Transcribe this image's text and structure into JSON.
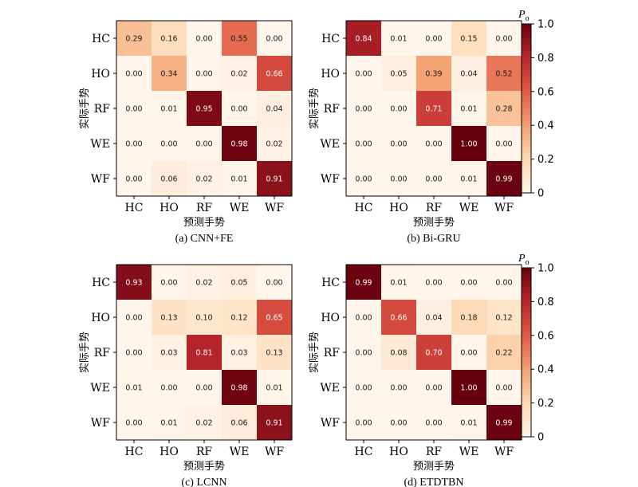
{
  "colorbar": {
    "title": "P",
    "title_subscript": "o",
    "ticks": [
      "0",
      "0.2",
      "0.4",
      "0.6",
      "0.8",
      "1.0"
    ],
    "range": [
      0,
      1
    ],
    "colors": [
      "#fff5eb",
      "#fdd8b2",
      "#f4a072",
      "#e05a46",
      "#b8262c",
      "#67000d"
    ]
  },
  "chart_data": [
    {
      "type": "heatmap",
      "caption": "(a) CNN+FE",
      "xlabel": "预测手势",
      "ylabel": "实际手势",
      "x_categories": [
        "HC",
        "HO",
        "RF",
        "WE",
        "WF"
      ],
      "y_categories": [
        "HC",
        "HO",
        "RF",
        "WE",
        "WF"
      ],
      "values": [
        [
          0.29,
          0.16,
          0.0,
          0.55,
          0.0
        ],
        [
          0.0,
          0.34,
          0.0,
          0.02,
          0.66
        ],
        [
          0.0,
          0.01,
          0.95,
          0.0,
          0.04
        ],
        [
          0.0,
          0.0,
          0.0,
          0.98,
          0.02
        ],
        [
          0.0,
          0.06,
          0.02,
          0.01,
          0.91
        ]
      ]
    },
    {
      "type": "heatmap",
      "caption": "(b) Bi-GRU",
      "xlabel": "预测手势",
      "ylabel": "实际手势",
      "x_categories": [
        "HC",
        "HO",
        "RF",
        "WE",
        "WF"
      ],
      "y_categories": [
        "HC",
        "HO",
        "RF",
        "WE",
        "WF"
      ],
      "values": [
        [
          0.84,
          0.01,
          0.0,
          0.15,
          0.0
        ],
        [
          0.0,
          0.05,
          0.39,
          0.04,
          0.52
        ],
        [
          0.0,
          0.0,
          0.71,
          0.01,
          0.28
        ],
        [
          0.0,
          0.0,
          0.0,
          1.0,
          0.0
        ],
        [
          0.0,
          0.0,
          0.0,
          0.01,
          0.99
        ]
      ]
    },
    {
      "type": "heatmap",
      "caption": "(c) LCNN",
      "xlabel": "预测手势",
      "ylabel": "实际手势",
      "x_categories": [
        "HC",
        "HO",
        "RF",
        "WE",
        "WF"
      ],
      "y_categories": [
        "HC",
        "HO",
        "RF",
        "WE",
        "WF"
      ],
      "values": [
        [
          0.93,
          0.0,
          0.02,
          0.05,
          0.0
        ],
        [
          0.0,
          0.13,
          0.1,
          0.12,
          0.65
        ],
        [
          0.0,
          0.03,
          0.81,
          0.03,
          0.13
        ],
        [
          0.01,
          0.0,
          0.0,
          0.98,
          0.01
        ],
        [
          0.0,
          0.01,
          0.02,
          0.06,
          0.91
        ]
      ]
    },
    {
      "type": "heatmap",
      "caption": "(d) ETDTBN",
      "xlabel": "预测手势",
      "ylabel": "实际手势",
      "x_categories": [
        "HC",
        "HO",
        "RF",
        "WE",
        "WF"
      ],
      "y_categories": [
        "HC",
        "HO",
        "RF",
        "WE",
        "WF"
      ],
      "values": [
        [
          0.99,
          0.01,
          0.0,
          0.0,
          0.0
        ],
        [
          0.0,
          0.66,
          0.04,
          0.18,
          0.12
        ],
        [
          0.0,
          0.08,
          0.7,
          0.0,
          0.22
        ],
        [
          0.0,
          0.0,
          0.0,
          1.0,
          0.0
        ],
        [
          0.0,
          0.0,
          0.0,
          0.01,
          0.99
        ]
      ]
    }
  ]
}
